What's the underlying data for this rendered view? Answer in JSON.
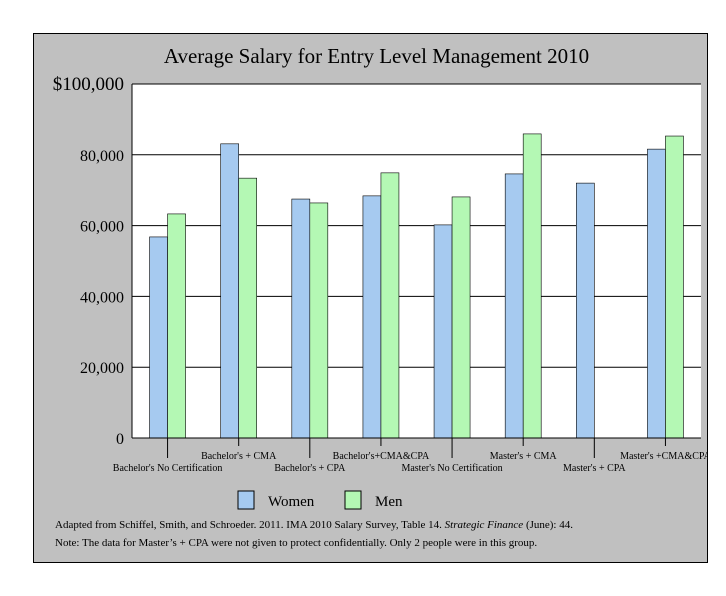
{
  "chart_data": {
    "type": "bar",
    "title": "Average Salary for Entry Level Management  2010",
    "xlabel": "",
    "ylabel": "",
    "ylim": [
      0,
      100000
    ],
    "yticks": [
      "0",
      "20,000",
      "40,000",
      "60,000",
      "80,000",
      "$100,000"
    ],
    "ytick_values": [
      0,
      20000,
      40000,
      60000,
      80000,
      100000
    ],
    "grid": true,
    "legend": "bottom",
    "categories": [
      "Bachelor's No Certification",
      "Bachelor's + CMA",
      "Bachelor's + CPA",
      "Bachelor's+CMA&CPA",
      "Master's No Certification",
      "Master's + CMA",
      "Master's + CPA",
      "Master's +CMA&CPA"
    ],
    "series": [
      {
        "name": "Women",
        "color": "#a6caf0",
        "values": [
          56800,
          83100,
          67500,
          68400,
          60200,
          74600,
          72000,
          81600
        ]
      },
      {
        "name": "Men",
        "color": "#b4f8b4",
        "values": [
          63300,
          73400,
          66400,
          74900,
          68100,
          85900,
          null,
          85300
        ]
      }
    ]
  },
  "notes": {
    "source_prefix": "Adapted from Schiffel, Smith, and Schroeder. 2011. IMA 2010 Salary Survey, Table 14.  ",
    "source_journal": "Strategic Finance",
    "source_suffix": " (June): 44.",
    "note": "Note: The data for Master’s + CPA were not given to protect confidentially. Only 2 people were in this group."
  }
}
